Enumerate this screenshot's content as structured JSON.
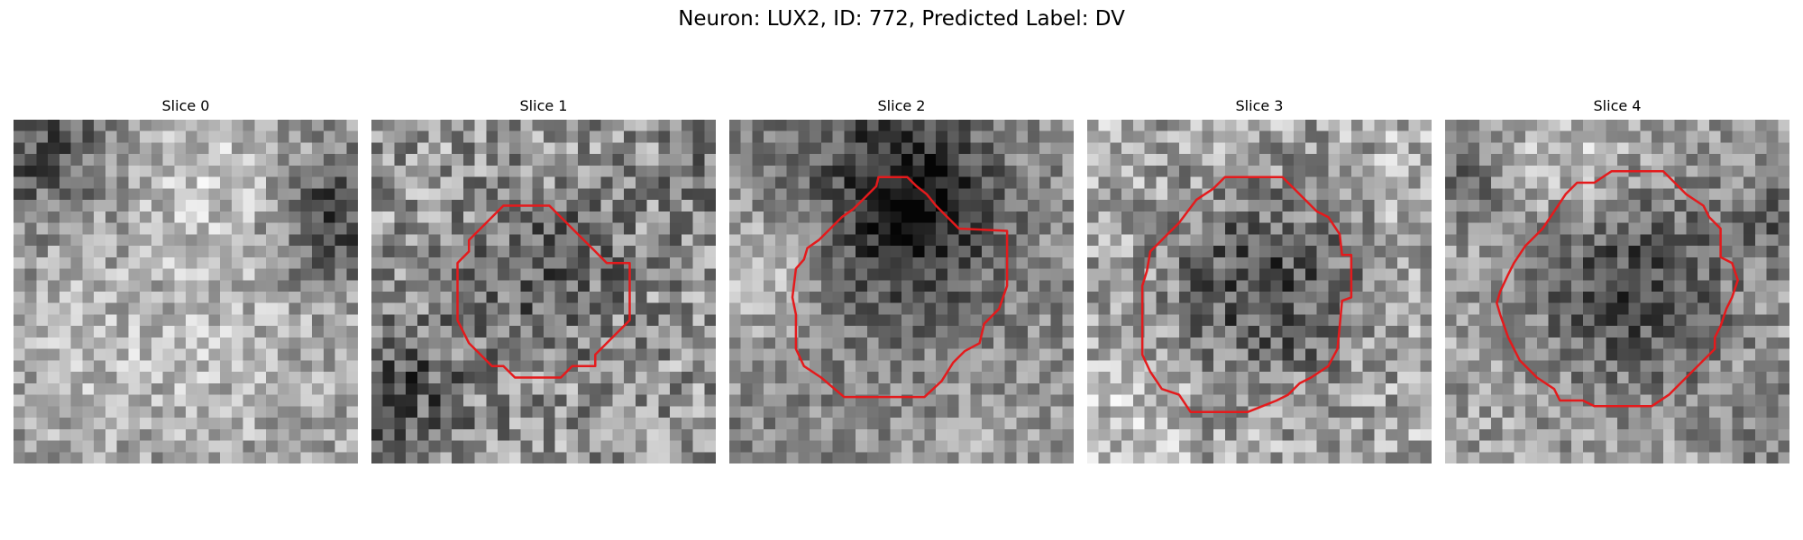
{
  "figure": {
    "title": "Neuron: LUX2, ID: 772, Predicted Label: DV"
  },
  "outline_color": "#e41a1c",
  "colormap": "gray",
  "panels": [
    {
      "title": "Slice 0",
      "has_outline": false
    },
    {
      "title": "Slice 1",
      "has_outline": true
    },
    {
      "title": "Slice 2",
      "has_outline": true
    },
    {
      "title": "Slice 3",
      "has_outline": true
    },
    {
      "title": "Slice 4",
      "has_outline": true
    }
  ]
}
